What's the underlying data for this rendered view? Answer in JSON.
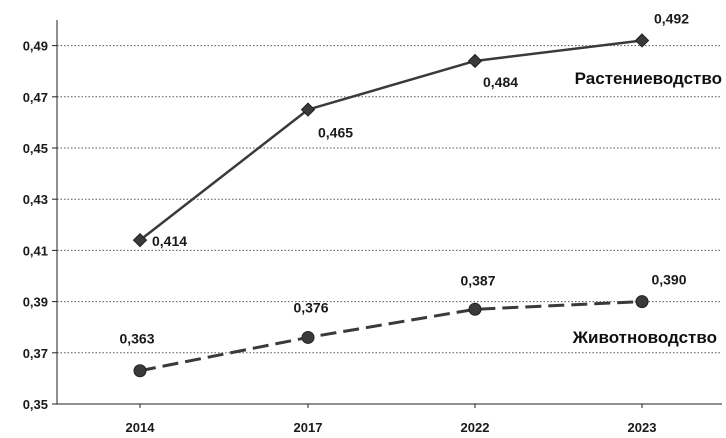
{
  "chart_data": {
    "type": "line",
    "title": "",
    "xlabel": "",
    "ylabel": "",
    "categories": [
      "2014",
      "2017",
      "2022",
      "2023"
    ],
    "ylim": [
      0.35,
      0.5
    ],
    "yticks": [
      "0,35",
      "0,37",
      "0,39",
      "0,41",
      "0,43",
      "0,45",
      "0,47",
      "0,49"
    ],
    "grid": "horizontal dotted",
    "series": [
      {
        "name": "Растениеводство",
        "values": [
          0.414,
          0.465,
          0.484,
          0.492
        ],
        "labels": [
          "0,414",
          "0,465",
          "0,484",
          "0,492"
        ],
        "marker": "diamond",
        "line_style": "solid",
        "color": "#3a3a3a"
      },
      {
        "name": "Животноводство",
        "values": [
          0.363,
          0.376,
          0.387,
          0.39
        ],
        "labels": [
          "0,363",
          "0,376",
          "0,387",
          "0,390"
        ],
        "marker": "circle",
        "line_style": "dashed",
        "color": "#3a3a3a"
      }
    ]
  }
}
